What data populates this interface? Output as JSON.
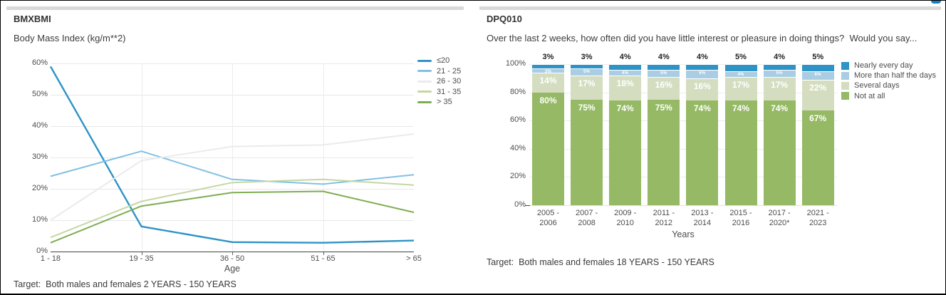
{
  "header": {
    "accent_color": "#1a7dc0"
  },
  "left_panel": {
    "title": "BMXBMI",
    "subtitle": "Body Mass Index (kg/m**2)",
    "target": "Target:  Both males and females 2 YEARS - 150 YEARS"
  },
  "right_panel": {
    "title": "DPQ010",
    "subtitle": "Over the last 2 weeks, how often did you have little interest or pleasure in doing things?  Would you say...",
    "target": "Target:  Both males and females 18 YEARS - 150 YEARS"
  },
  "chart_data": [
    {
      "type": "line",
      "title": "Body Mass Index (kg/m**2)",
      "xlabel": "Age",
      "ylabel": "",
      "ylim": [
        0,
        60
      ],
      "y_tick_labels": [
        "0%",
        "10%",
        "20%",
        "30%",
        "40%",
        "50%",
        "60%"
      ],
      "y_tick_values": [
        0,
        10,
        20,
        30,
        40,
        50,
        60
      ],
      "categories": [
        "1 - 18",
        "19 - 35",
        "36 - 50",
        "51 - 65",
        "> 65"
      ],
      "grid": true,
      "legend_position": "right",
      "series": [
        {
          "name": "≤20",
          "color": "#2e93c6",
          "values": [
            59,
            8,
            3,
            2.8,
            3.5
          ]
        },
        {
          "name": "21 - 25",
          "color": "#82c0e4",
          "values": [
            24,
            32,
            23,
            21.5,
            24.5
          ]
        },
        {
          "name": "26 - 30",
          "color": "#e9ebec",
          "values": [
            10,
            29,
            33.5,
            34,
            37.5
          ]
        },
        {
          "name": "31 - 35",
          "color": "#c4d7a2",
          "values": [
            4.5,
            16,
            22,
            23,
            21.2
          ]
        },
        {
          "name": "> 35",
          "color": "#7ead51",
          "values": [
            2.8,
            14.5,
            18.8,
            19.2,
            12.5
          ]
        }
      ]
    },
    {
      "type": "stacked-bar",
      "xlabel": "Years",
      "ylabel": "",
      "ylim": [
        0,
        100
      ],
      "y_tick_labels": [
        "0%",
        "20%",
        "40%",
        "60%",
        "80%",
        "100%"
      ],
      "y_tick_values": [
        0,
        20,
        40,
        60,
        80,
        100
      ],
      "categories": [
        "2005 -\n2006",
        "2007 -\n2008",
        "2009 -\n2010",
        "2011 -\n2012",
        "2013 -\n2014",
        "2015 -\n2016",
        "2017 -\n2020*",
        "2021 -\n2023"
      ],
      "grid": true,
      "legend_position": "right",
      "legend": [
        "Nearly every day",
        "More than half the days",
        "Several days",
        "Not at all"
      ],
      "top_labels": [
        "3%",
        "3%",
        "4%",
        "4%",
        "4%",
        "5%",
        "4%",
        "5%"
      ],
      "series": [
        {
          "name": "Not at all",
          "color": "#95b964",
          "values": [
            80,
            75,
            74,
            75,
            74,
            74,
            74,
            67
          ],
          "labels": [
            "80%",
            "75%",
            "74%",
            "75%",
            "74%",
            "74%",
            "74%",
            "67%"
          ],
          "label_style": "big"
        },
        {
          "name": "Several days",
          "color": "#d4ddc0",
          "values": [
            14,
            17,
            18,
            16,
            16,
            17,
            17,
            22
          ],
          "labels": [
            "14%",
            "17%",
            "18%",
            "16%",
            "16%",
            "17%",
            "17%",
            "22%"
          ],
          "label_style": "mid"
        },
        {
          "name": "More than half the days",
          "color": "#aacde3",
          "values": [
            3,
            5,
            4,
            5,
            6,
            4,
            5,
            6
          ],
          "labels": [
            "3%",
            "5%",
            "4%",
            "5%",
            "6%",
            "4%",
            "5%",
            "6%"
          ],
          "label_style": "tiny"
        },
        {
          "name": "Nearly every day",
          "color": "#2e93c6",
          "values": [
            3,
            3,
            4,
            4,
            4,
            5,
            4,
            5
          ],
          "labels": [],
          "label_style": "none"
        }
      ]
    }
  ]
}
